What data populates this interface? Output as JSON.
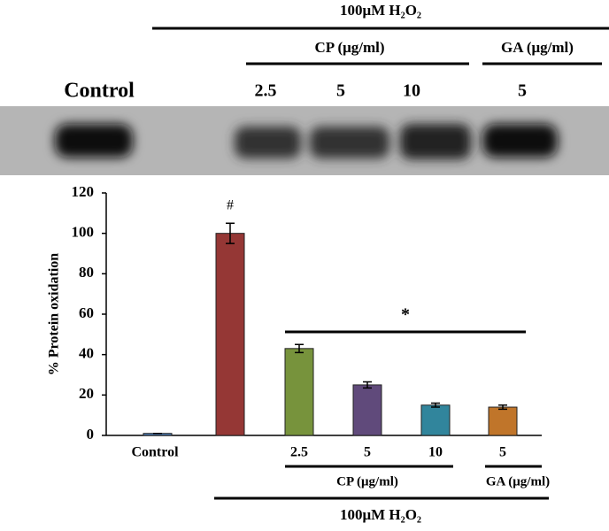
{
  "blot": {
    "treatment": "100μM H₂O₂",
    "groups": [
      "CP (μg/ml)",
      "GA (μg/ml)"
    ],
    "control": "Control",
    "lanes": [
      "2.5",
      "5",
      "10",
      "5"
    ]
  },
  "chart_data": {
    "type": "bar",
    "categories": [
      "Control",
      null,
      "2.5",
      "5",
      "10",
      "5"
    ],
    "values": [
      1,
      100,
      43,
      25,
      15,
      14
    ],
    "errors": [
      0,
      5,
      2,
      1.5,
      1,
      1
    ],
    "colors": [
      "#4f81bd",
      "#953735",
      "#77933c",
      "#604a7b",
      "#31859c",
      "#c0752a"
    ],
    "y_label": "% Protein oxidation",
    "ylim": [
      0,
      120
    ],
    "yticks": [
      0,
      20,
      40,
      60,
      80,
      100,
      120
    ],
    "annotations": [
      "#",
      "*"
    ],
    "groups": [
      "CP (μg/ml)",
      "GA (μg/ml)"
    ],
    "treatment": "100μM H₂O₂"
  }
}
